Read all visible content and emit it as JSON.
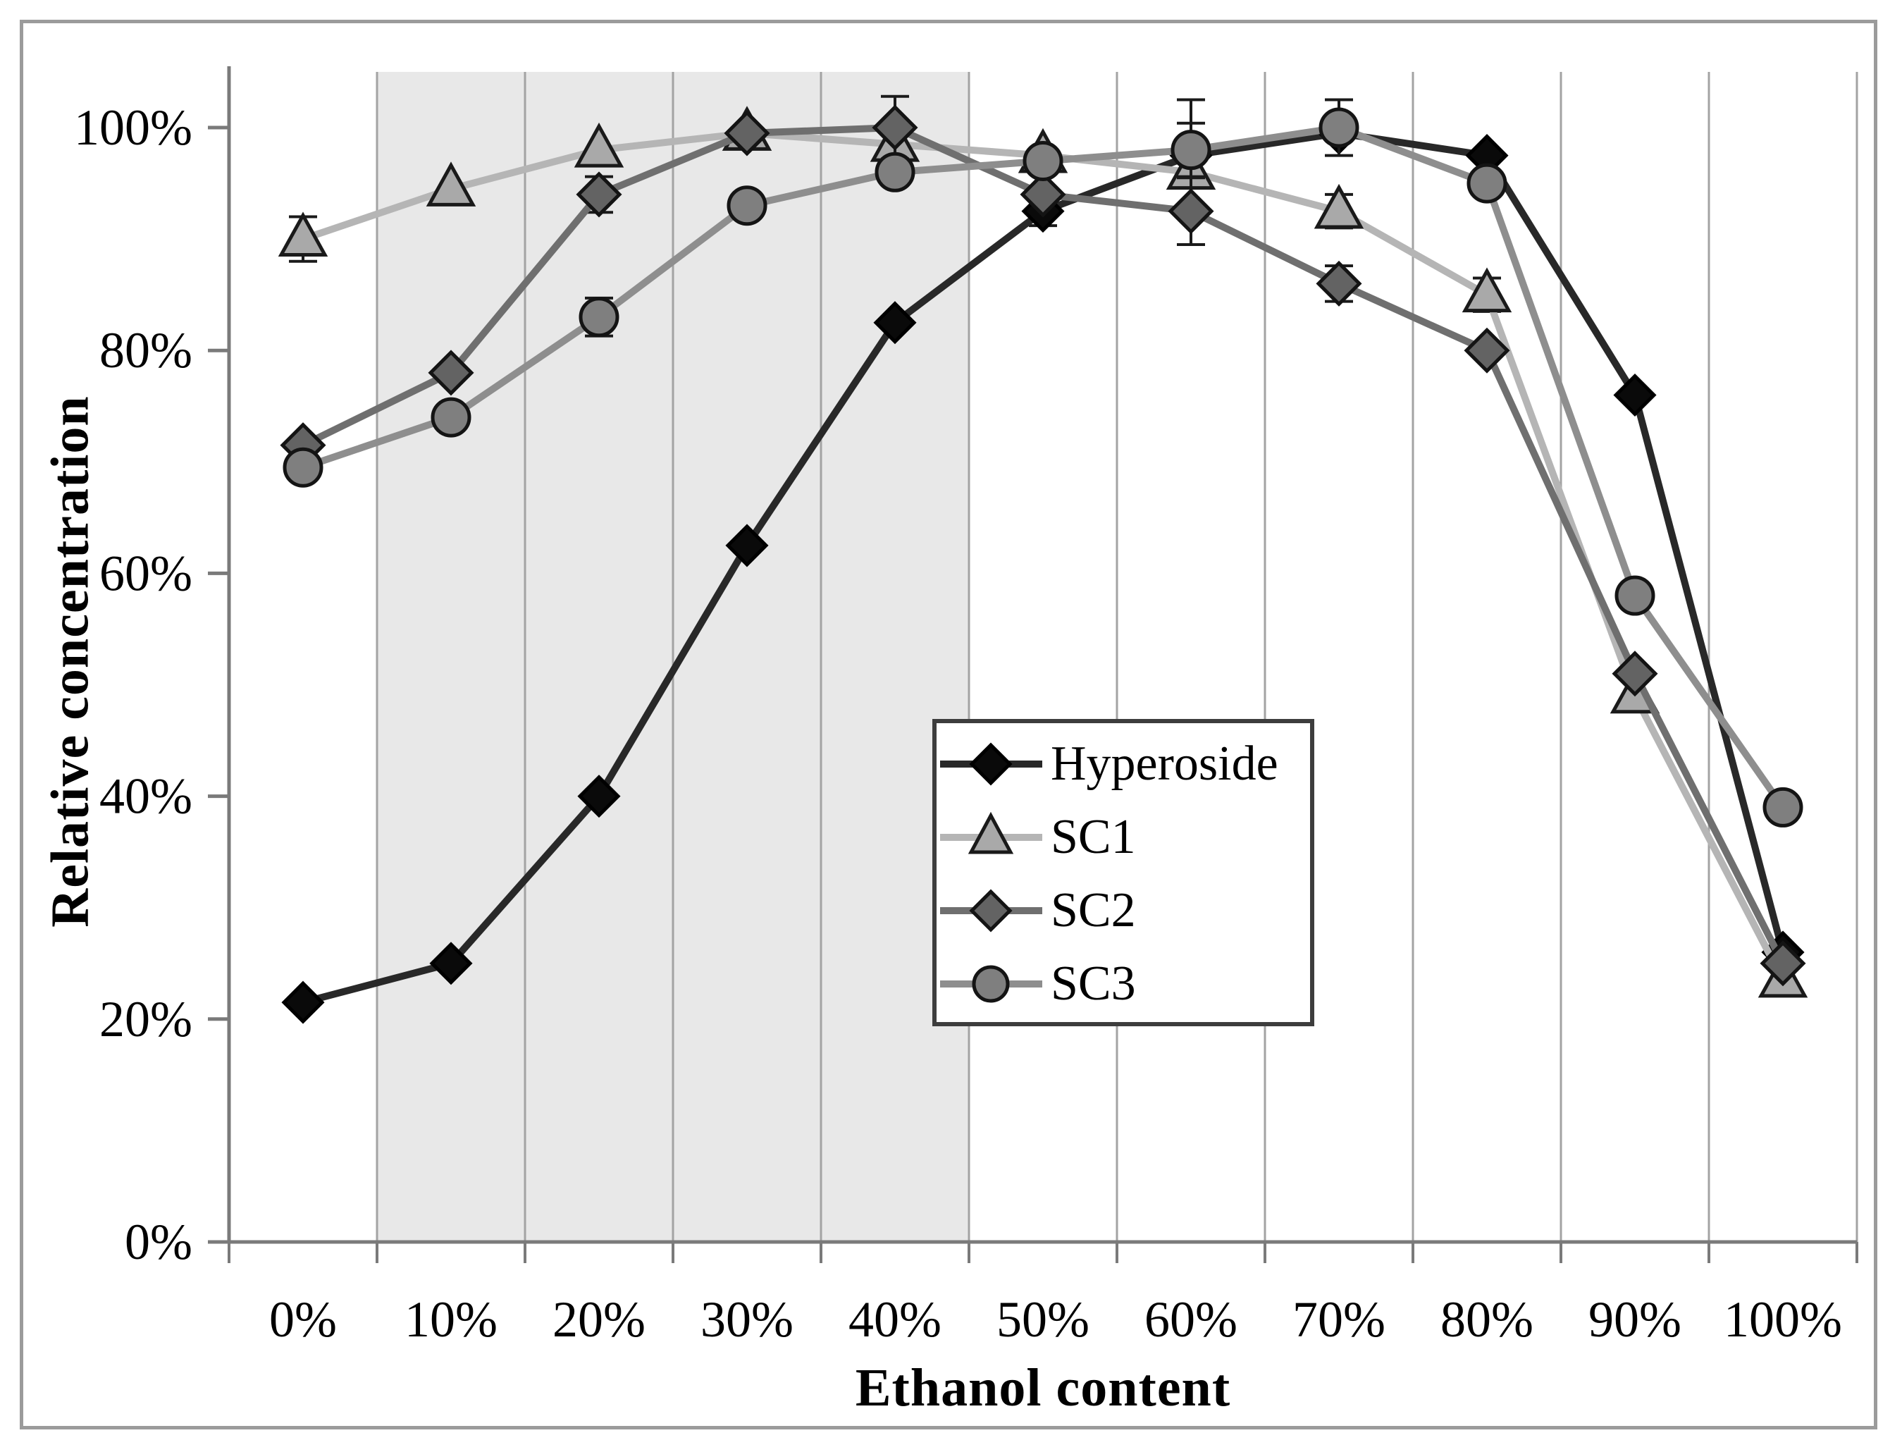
{
  "figure": {
    "background": "#ffffff",
    "border_color": "#9b9b9b"
  },
  "chart_data": {
    "type": "line",
    "title": "",
    "xlabel": "Ethanol content",
    "ylabel": "Relative concentration",
    "categories": [
      "0%",
      "10%",
      "20%",
      "30%",
      "40%",
      "50%",
      "60%",
      "70%",
      "80%",
      "90%",
      "100%"
    ],
    "x_values_percent": [
      0,
      10,
      20,
      30,
      40,
      50,
      60,
      70,
      80,
      90,
      100
    ],
    "y_ticks": [
      0,
      20,
      40,
      60,
      80,
      100
    ],
    "y_tick_labels": [
      "0%",
      "20%",
      "40%",
      "60%",
      "80%",
      "100%"
    ],
    "ylim": [
      0,
      105
    ],
    "grid": "vertical gridlines at category boundaries only",
    "highlight_band": {
      "x_from_percent": 5,
      "x_to_percent": 45,
      "color": "#e8e8e8"
    },
    "legend_position": "inside, center-right",
    "axis_color": "#7a7a7a",
    "gridline_color": "#a3a3a3",
    "error_bar_color": "#1a1a1a",
    "series": [
      {
        "name": "Hyperoside",
        "marker": "diamond",
        "line_color": "#282828",
        "marker_fill": "#0a0a0a",
        "marker_stroke": "#000000",
        "values": [
          21.5,
          25,
          40,
          62.5,
          82.5,
          92.5,
          97.5,
          99.5,
          97.5,
          76,
          26
        ],
        "errors": [
          null,
          null,
          null,
          null,
          null,
          1.3,
          null,
          null,
          null,
          null,
          null
        ]
      },
      {
        "name": "SC1",
        "marker": "triangle",
        "line_color": "#b5b5b5",
        "marker_fill": "#a9a9a9",
        "marker_stroke": "#1a1a1a",
        "values": [
          90,
          94.5,
          98,
          99.5,
          98.5,
          97.5,
          96,
          92.5,
          85,
          49,
          23.5
        ],
        "errors": [
          2,
          null,
          null,
          null,
          null,
          null,
          6.5,
          1.5,
          1.5,
          null,
          null
        ]
      },
      {
        "name": "SC2",
        "marker": "diamond",
        "line_color": "#6f6f6f",
        "marker_fill": "#636363",
        "marker_stroke": "#141414",
        "values": [
          71.5,
          78,
          94,
          99.5,
          100,
          94,
          92.5,
          86,
          80,
          51,
          25
        ],
        "errors": [
          null,
          null,
          1.6,
          null,
          2.8,
          null,
          3,
          1.6,
          null,
          null,
          null
        ]
      },
      {
        "name": "SC3",
        "marker": "circle",
        "line_color": "#8e8e8e",
        "marker_fill": "#7f7f7f",
        "marker_stroke": "#141414",
        "values": [
          69.5,
          74,
          83,
          93,
          96,
          97,
          98,
          100,
          95,
          58,
          39
        ],
        "errors": [
          null,
          null,
          1.7,
          null,
          null,
          null,
          2.4,
          2.5,
          null,
          null,
          null
        ]
      }
    ]
  }
}
